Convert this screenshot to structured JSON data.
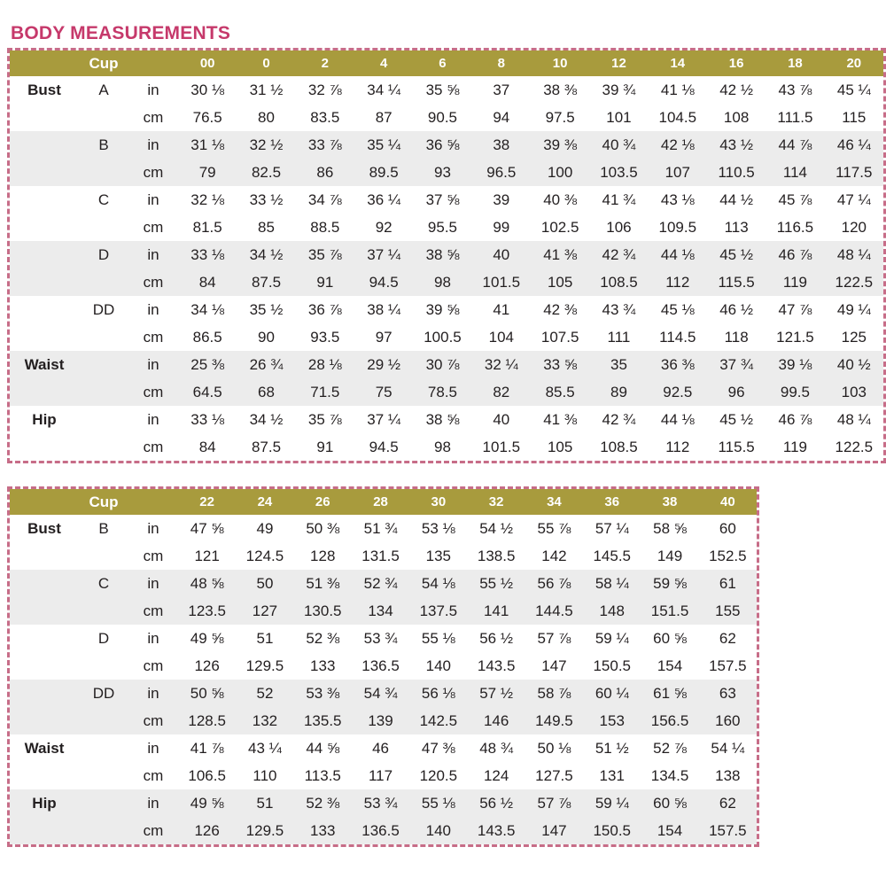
{
  "page": {
    "title": "BODY MEASUREMENTS"
  },
  "colors": {
    "title_text": "#c6396b",
    "header_bg": "#a89b3d",
    "header_text": "#ffffff",
    "alt_row_bg": "#ececec",
    "dashed_border": "#c76d88",
    "body_text": "#231f20"
  },
  "units": [
    "in",
    "cm"
  ],
  "tables": [
    {
      "cup_label": "Cup",
      "sizes": [
        "00",
        "0",
        "2",
        "4",
        "6",
        "8",
        "10",
        "12",
        "14",
        "16",
        "18",
        "20"
      ],
      "groups": [
        {
          "label": "Bust",
          "cup": "A",
          "in": [
            "30 ⅛",
            "31 ½",
            "32 ⅞",
            "34 ¼",
            "35 ⅝",
            "37",
            "38 ⅜",
            "39 ¾",
            "41 ⅛",
            "42 ½",
            "43 ⅞",
            "45 ¼"
          ],
          "cm": [
            "76.5",
            "80",
            "83.5",
            "87",
            "90.5",
            "94",
            "97.5",
            "101",
            "104.5",
            "108",
            "111.5",
            "115"
          ]
        },
        {
          "label": "",
          "cup": "B",
          "in": [
            "31 ⅛",
            "32 ½",
            "33 ⅞",
            "35 ¼",
            "36 ⅝",
            "38",
            "39 ⅜",
            "40 ¾",
            "42 ⅛",
            "43 ½",
            "44 ⅞",
            "46 ¼"
          ],
          "cm": [
            "79",
            "82.5",
            "86",
            "89.5",
            "93",
            "96.5",
            "100",
            "103.5",
            "107",
            "110.5",
            "114",
            "117.5"
          ]
        },
        {
          "label": "",
          "cup": "C",
          "in": [
            "32 ⅛",
            "33 ½",
            "34 ⅞",
            "36 ¼",
            "37 ⅝",
            "39",
            "40 ⅜",
            "41 ¾",
            "43 ⅛",
            "44 ½",
            "45 ⅞",
            "47 ¼"
          ],
          "cm": [
            "81.5",
            "85",
            "88.5",
            "92",
            "95.5",
            "99",
            "102.5",
            "106",
            "109.5",
            "113",
            "116.5",
            "120"
          ]
        },
        {
          "label": "",
          "cup": "D",
          "in": [
            "33 ⅛",
            "34 ½",
            "35 ⅞",
            "37 ¼",
            "38 ⅝",
            "40",
            "41 ⅜",
            "42 ¾",
            "44 ⅛",
            "45 ½",
            "46 ⅞",
            "48 ¼"
          ],
          "cm": [
            "84",
            "87.5",
            "91",
            "94.5",
            "98",
            "101.5",
            "105",
            "108.5",
            "112",
            "115.5",
            "119",
            "122.5"
          ]
        },
        {
          "label": "",
          "cup": "DD",
          "in": [
            "34 ⅛",
            "35 ½",
            "36 ⅞",
            "38 ¼",
            "39 ⅝",
            "41",
            "42 ⅜",
            "43 ¾",
            "45 ⅛",
            "46 ½",
            "47 ⅞",
            "49 ¼"
          ],
          "cm": [
            "86.5",
            "90",
            "93.5",
            "97",
            "100.5",
            "104",
            "107.5",
            "111",
            "114.5",
            "118",
            "121.5",
            "125"
          ]
        },
        {
          "label": "Waist",
          "cup": "",
          "in": [
            "25 ⅜",
            "26 ¾",
            "28 ⅛",
            "29 ½",
            "30 ⅞",
            "32 ¼",
            "33 ⅝",
            "35",
            "36 ⅜",
            "37 ¾",
            "39 ⅛",
            "40 ½"
          ],
          "cm": [
            "64.5",
            "68",
            "71.5",
            "75",
            "78.5",
            "82",
            "85.5",
            "89",
            "92.5",
            "96",
            "99.5",
            "103"
          ]
        },
        {
          "label": "Hip",
          "cup": "",
          "in": [
            "33 ⅛",
            "34 ½",
            "35 ⅞",
            "37 ¼",
            "38 ⅝",
            "40",
            "41 ⅜",
            "42 ¾",
            "44 ⅛",
            "45 ½",
            "46 ⅞",
            "48 ¼"
          ],
          "cm": [
            "84",
            "87.5",
            "91",
            "94.5",
            "98",
            "101.5",
            "105",
            "108.5",
            "112",
            "115.5",
            "119",
            "122.5"
          ]
        }
      ]
    },
    {
      "cup_label": "Cup",
      "sizes": [
        "22",
        "24",
        "26",
        "28",
        "30",
        "32",
        "34",
        "36",
        "38",
        "40"
      ],
      "groups": [
        {
          "label": "Bust",
          "cup": "B",
          "in": [
            "47 ⅝",
            "49",
            "50 ⅜",
            "51 ¾",
            "53 ⅛",
            "54 ½",
            "55 ⅞",
            "57 ¼",
            "58 ⅝",
            "60"
          ],
          "cm": [
            "121",
            "124.5",
            "128",
            "131.5",
            "135",
            "138.5",
            "142",
            "145.5",
            "149",
            "152.5"
          ]
        },
        {
          "label": "",
          "cup": "C",
          "in": [
            "48 ⅝",
            "50",
            "51 ⅜",
            "52 ¾",
            "54 ⅛",
            "55 ½",
            "56 ⅞",
            "58 ¼",
            "59 ⅝",
            "61"
          ],
          "cm": [
            "123.5",
            "127",
            "130.5",
            "134",
            "137.5",
            "141",
            "144.5",
            "148",
            "151.5",
            "155"
          ]
        },
        {
          "label": "",
          "cup": "D",
          "in": [
            "49 ⅝",
            "51",
            "52 ⅜",
            "53 ¾",
            "55 ⅛",
            "56 ½",
            "57 ⅞",
            "59 ¼",
            "60 ⅝",
            "62"
          ],
          "cm": [
            "126",
            "129.5",
            "133",
            "136.5",
            "140",
            "143.5",
            "147",
            "150.5",
            "154",
            "157.5"
          ]
        },
        {
          "label": "",
          "cup": "DD",
          "in": [
            "50 ⅝",
            "52",
            "53 ⅜",
            "54 ¾",
            "56 ⅛",
            "57 ½",
            "58 ⅞",
            "60 ¼",
            "61 ⅝",
            "63"
          ],
          "cm": [
            "128.5",
            "132",
            "135.5",
            "139",
            "142.5",
            "146",
            "149.5",
            "153",
            "156.5",
            "160"
          ]
        },
        {
          "label": "Waist",
          "cup": "",
          "in": [
            "41 ⅞",
            "43 ¼",
            "44 ⅝",
            "46",
            "47 ⅜",
            "48 ¾",
            "50 ⅛",
            "51 ½",
            "52 ⅞",
            "54 ¼"
          ],
          "cm": [
            "106.5",
            "110",
            "113.5",
            "117",
            "120.5",
            "124",
            "127.5",
            "131",
            "134.5",
            "138"
          ]
        },
        {
          "label": "Hip",
          "cup": "",
          "in": [
            "49 ⅝",
            "51",
            "52 ⅜",
            "53 ¾",
            "55 ⅛",
            "56 ½",
            "57 ⅞",
            "59 ¼",
            "60 ⅝",
            "62"
          ],
          "cm": [
            "126",
            "129.5",
            "133",
            "136.5",
            "140",
            "143.5",
            "147",
            "150.5",
            "154",
            "157.5"
          ]
        }
      ]
    }
  ]
}
